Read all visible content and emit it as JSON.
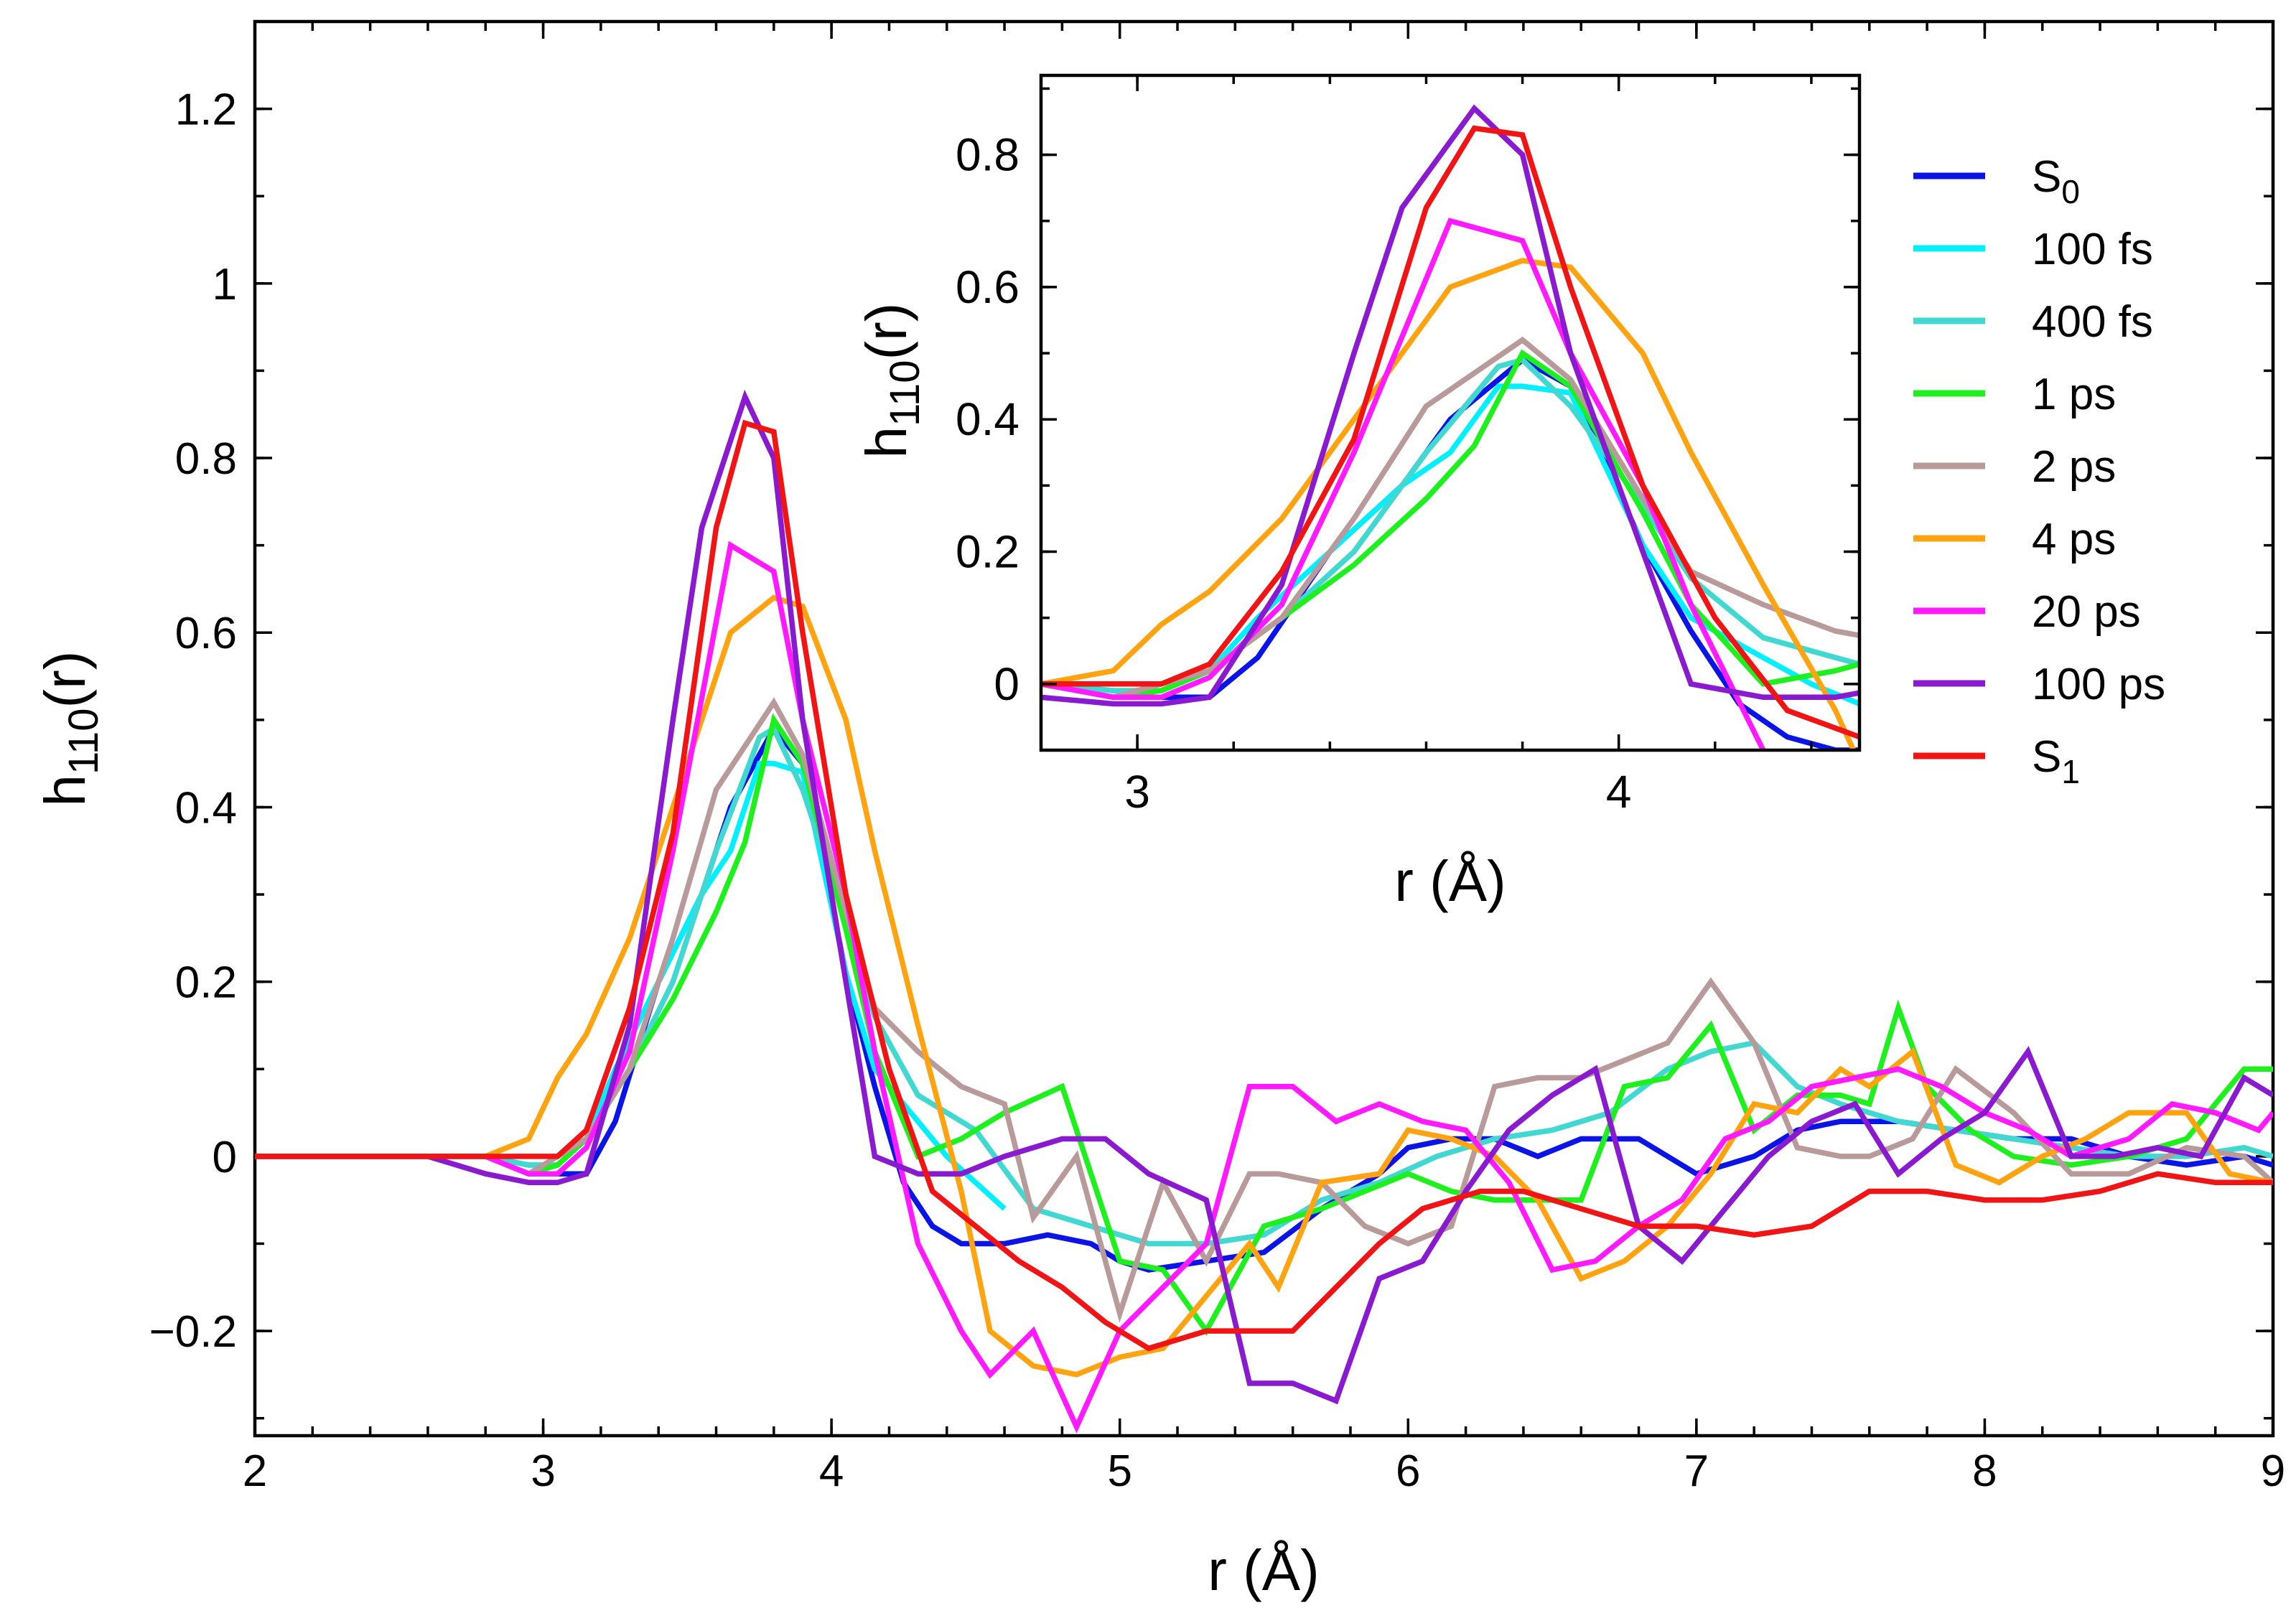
{
  "chart_data": {
    "type": "line",
    "xlabel": "r (Å)",
    "ylabel": "h110(r)",
    "ylabel_main": "h",
    "ylabel_sub": "110",
    "ylabel_tail": "(r)",
    "xlim": [
      2,
      9
    ],
    "ylim": [
      -0.32,
      1.3
    ],
    "x_ticks": [
      "2",
      "3",
      "4",
      "5",
      "6",
      "7",
      "8",
      "9"
    ],
    "y_ticks": [
      "−0.2",
      "0",
      "0.2",
      "0.4",
      "0.6",
      "0.8",
      "1",
      "1.2"
    ],
    "inset": {
      "xlabel": "r (Å)",
      "ylabel": "h110(r)",
      "ylabel_main": "h",
      "ylabel_sub": "110",
      "ylabel_tail": "(r)",
      "xlim": [
        2.8,
        4.5
      ],
      "ylim": [
        -0.1,
        0.92
      ],
      "x_ticks": [
        "3",
        "4"
      ],
      "y_ticks": [
        "0",
        "0.2",
        "0.4",
        "0.6",
        "0.8"
      ]
    },
    "legend": {
      "placement": "right"
    },
    "series": [
      {
        "name": "S0",
        "label_main": "S",
        "label_sub": "0",
        "color": "#0a14e6",
        "x": [
          2.0,
          2.2,
          2.4,
          2.6,
          2.8,
          2.95,
          3.05,
          3.15,
          3.25,
          3.4,
          3.55,
          3.65,
          3.8,
          3.9,
          4.05,
          4.15,
          4.25,
          4.35,
          4.45,
          4.6,
          4.75,
          4.9,
          5.0,
          5.1,
          5.3,
          5.5,
          5.7,
          5.9,
          6.0,
          6.15,
          6.3,
          6.45,
          6.6,
          6.8,
          7.0,
          7.2,
          7.35,
          7.5,
          7.7,
          7.9,
          8.1,
          8.3,
          8.5,
          8.7,
          8.9,
          9.0
        ],
        "y": [
          0,
          0,
          0,
          0,
          0,
          -0.02,
          -0.02,
          -0.02,
          0.04,
          0.2,
          0.3,
          0.4,
          0.49,
          0.45,
          0.21,
          0.08,
          -0.03,
          -0.08,
          -0.1,
          -0.1,
          -0.09,
          -0.1,
          -0.12,
          -0.13,
          -0.12,
          -0.11,
          -0.06,
          -0.02,
          0.01,
          0.02,
          0.02,
          0.0,
          0.02,
          0.02,
          -0.02,
          0.0,
          0.03,
          0.04,
          0.04,
          0.03,
          0.02,
          0.02,
          0.0,
          -0.01,
          0.0,
          -0.01
        ]
      },
      {
        "name": "100 fs",
        "label_main": "100 fs",
        "label_sub": "",
        "color": "#00f0ff",
        "x": [
          2.0,
          2.2,
          2.4,
          2.6,
          2.8,
          2.95,
          3.05,
          3.15,
          3.25,
          3.4,
          3.55,
          3.65,
          3.75,
          3.8,
          3.9,
          4.05,
          4.15,
          4.3,
          4.4,
          4.6
        ],
        "y": [
          0,
          0,
          0,
          0,
          0,
          -0.01,
          -0.01,
          0.02,
          0.1,
          0.2,
          0.3,
          0.35,
          0.45,
          0.45,
          0.44,
          0.21,
          0.1,
          0.04,
          0.0,
          -0.06
        ]
      },
      {
        "name": "400 fs",
        "label_main": "400 fs",
        "label_sub": "",
        "color": "#40d8d0",
        "x": [
          2.0,
          2.2,
          2.4,
          2.6,
          2.8,
          2.95,
          3.05,
          3.15,
          3.3,
          3.45,
          3.6,
          3.75,
          3.8,
          3.9,
          4.05,
          4.15,
          4.3,
          4.4,
          4.5,
          4.7,
          4.9,
          5.1,
          5.3,
          5.5,
          5.7,
          5.9,
          6.1,
          6.3,
          6.5,
          6.7,
          6.9,
          7.05,
          7.2,
          7.35,
          7.5,
          7.7,
          7.9,
          8.1,
          8.3,
          8.5,
          8.7,
          8.9,
          9.0
        ],
        "y": [
          0,
          0,
          0,
          0,
          0,
          -0.01,
          -0.01,
          0.02,
          0.1,
          0.2,
          0.35,
          0.48,
          0.49,
          0.42,
          0.27,
          0.16,
          0.07,
          0.05,
          0.03,
          -0.06,
          -0.08,
          -0.1,
          -0.1,
          -0.09,
          -0.05,
          -0.03,
          0.0,
          0.02,
          0.03,
          0.05,
          0.1,
          0.12,
          0.13,
          0.08,
          0.06,
          0.04,
          0.03,
          0.02,
          0.01,
          0.0,
          0.0,
          0.01,
          0.0
        ]
      },
      {
        "name": "1 ps",
        "label_main": "1 ps",
        "label_sub": "",
        "color": "#1ef01e",
        "x": [
          2.0,
          2.2,
          2.4,
          2.6,
          2.8,
          2.95,
          3.05,
          3.15,
          3.3,
          3.45,
          3.6,
          3.7,
          3.8,
          3.9,
          4.05,
          4.15,
          4.3,
          4.45,
          4.6,
          4.8,
          5.0,
          5.15,
          5.3,
          5.5,
          5.7,
          5.85,
          6.0,
          6.15,
          6.3,
          6.45,
          6.6,
          6.75,
          6.9,
          7.05,
          7.2,
          7.35,
          7.5,
          7.6,
          7.7,
          7.8,
          7.95,
          8.1,
          8.3,
          8.5,
          8.7,
          8.9,
          9.0
        ],
        "y": [
          0,
          0,
          0,
          0,
          0,
          -0.02,
          -0.01,
          0.02,
          0.1,
          0.18,
          0.28,
          0.36,
          0.5,
          0.45,
          0.26,
          0.12,
          0.0,
          0.02,
          0.05,
          0.08,
          -0.12,
          -0.13,
          -0.2,
          -0.08,
          -0.06,
          -0.04,
          -0.02,
          -0.04,
          -0.05,
          -0.05,
          -0.05,
          0.08,
          0.09,
          0.15,
          0.03,
          0.07,
          0.07,
          0.06,
          0.17,
          0.08,
          0.03,
          0.0,
          -0.01,
          0.0,
          0.02,
          0.1,
          0.1
        ]
      },
      {
        "name": "2 ps",
        "label_main": "2 ps",
        "label_sub": "",
        "color": "#b89a9a",
        "x": [
          2.0,
          2.2,
          2.4,
          2.6,
          2.8,
          2.95,
          3.05,
          3.15,
          3.3,
          3.45,
          3.6,
          3.8,
          3.9,
          4.05,
          4.15,
          4.3,
          4.45,
          4.6,
          4.7,
          4.85,
          5.0,
          5.15,
          5.3,
          5.45,
          5.55,
          5.7,
          5.85,
          6.0,
          6.15,
          6.3,
          6.45,
          6.6,
          6.75,
          6.9,
          7.05,
          7.2,
          7.35,
          7.5,
          7.6,
          7.75,
          7.9,
          8.1,
          8.3,
          8.5,
          8.7,
          8.9,
          9.0
        ],
        "y": [
          0,
          0,
          0,
          0,
          0,
          -0.02,
          0.0,
          0.02,
          0.1,
          0.25,
          0.42,
          0.52,
          0.46,
          0.28,
          0.17,
          0.12,
          0.08,
          0.06,
          -0.07,
          0.0,
          -0.18,
          -0.03,
          -0.12,
          -0.02,
          -0.02,
          -0.03,
          -0.08,
          -0.1,
          -0.08,
          0.08,
          0.09,
          0.09,
          0.11,
          0.13,
          0.2,
          0.13,
          0.01,
          0.0,
          0.0,
          0.02,
          0.1,
          0.05,
          -0.02,
          -0.02,
          0.01,
          0.0,
          -0.03
        ]
      },
      {
        "name": "4 ps",
        "label_main": "4 ps",
        "label_sub": "",
        "color": "#ffa310",
        "x": [
          2.0,
          2.2,
          2.4,
          2.6,
          2.8,
          2.95,
          3.05,
          3.15,
          3.3,
          3.45,
          3.65,
          3.8,
          3.9,
          4.05,
          4.15,
          4.3,
          4.45,
          4.55,
          4.7,
          4.85,
          5.0,
          5.15,
          5.3,
          5.45,
          5.55,
          5.7,
          5.9,
          6.0,
          6.15,
          6.3,
          6.45,
          6.6,
          6.75,
          6.9,
          7.05,
          7.2,
          7.35,
          7.5,
          7.6,
          7.75,
          7.9,
          8.05,
          8.2,
          8.35,
          8.5,
          8.7,
          8.85,
          9.0
        ],
        "y": [
          0,
          0,
          0,
          0,
          0,
          0.02,
          0.09,
          0.14,
          0.25,
          0.4,
          0.6,
          0.64,
          0.63,
          0.5,
          0.35,
          0.15,
          -0.04,
          -0.2,
          -0.24,
          -0.25,
          -0.23,
          -0.22,
          -0.16,
          -0.1,
          -0.15,
          -0.03,
          -0.02,
          0.03,
          0.02,
          0.0,
          -0.05,
          -0.14,
          -0.12,
          -0.08,
          -0.02,
          0.06,
          0.05,
          0.1,
          0.08,
          0.12,
          -0.01,
          -0.03,
          0.0,
          0.02,
          0.05,
          0.05,
          -0.02,
          -0.03
        ]
      },
      {
        "name": "20 ps",
        "label_main": "20 ps",
        "label_sub": "",
        "color": "#ff1aff",
        "x": [
          2.0,
          2.2,
          2.4,
          2.6,
          2.8,
          2.95,
          3.05,
          3.15,
          3.3,
          3.45,
          3.65,
          3.8,
          3.9,
          4.05,
          4.15,
          4.3,
          4.45,
          4.55,
          4.7,
          4.85,
          5.0,
          5.15,
          5.3,
          5.45,
          5.6,
          5.75,
          5.9,
          6.05,
          6.2,
          6.35,
          6.5,
          6.65,
          6.8,
          6.95,
          7.1,
          7.25,
          7.4,
          7.55,
          7.7,
          7.85,
          8.0,
          8.15,
          8.3,
          8.5,
          8.65,
          8.8,
          8.95,
          9.0
        ],
        "y": [
          0,
          0,
          0,
          0,
          0,
          -0.02,
          -0.02,
          0.01,
          0.12,
          0.35,
          0.7,
          0.67,
          0.5,
          0.3,
          0.12,
          -0.1,
          -0.2,
          -0.25,
          -0.2,
          -0.31,
          -0.2,
          -0.15,
          -0.1,
          0.08,
          0.08,
          0.04,
          0.06,
          0.04,
          0.03,
          -0.03,
          -0.13,
          -0.12,
          -0.08,
          -0.05,
          0.02,
          0.04,
          0.08,
          0.09,
          0.1,
          0.08,
          0.05,
          0.03,
          0.0,
          0.02,
          0.06,
          0.05,
          0.03,
          0.05
        ]
      },
      {
        "name": "100 ps",
        "label_main": "100 ps",
        "label_sub": "",
        "color": "#8a1ad0",
        "x": [
          2.0,
          2.2,
          2.4,
          2.6,
          2.8,
          2.95,
          3.05,
          3.15,
          3.3,
          3.45,
          3.55,
          3.7,
          3.8,
          3.9,
          4.05,
          4.15,
          4.3,
          4.45,
          4.6,
          4.8,
          4.95,
          5.1,
          5.3,
          5.45,
          5.6,
          5.75,
          5.9,
          6.05,
          6.2,
          6.35,
          6.5,
          6.65,
          6.8,
          6.95,
          7.1,
          7.25,
          7.4,
          7.55,
          7.7,
          7.85,
          8.0,
          8.15,
          8.3,
          8.45,
          8.6,
          8.75,
          8.9,
          9.0
        ],
        "y": [
          0,
          0,
          0,
          0,
          -0.02,
          -0.03,
          -0.03,
          -0.02,
          0.15,
          0.5,
          0.72,
          0.87,
          0.8,
          0.5,
          0.2,
          0.0,
          -0.02,
          -0.02,
          0.0,
          0.02,
          0.02,
          -0.02,
          -0.05,
          -0.26,
          -0.26,
          -0.28,
          -0.14,
          -0.12,
          -0.04,
          0.03,
          0.07,
          0.1,
          -0.08,
          -0.12,
          -0.06,
          0.0,
          0.04,
          0.06,
          -0.02,
          0.02,
          0.05,
          0.12,
          0.0,
          0.0,
          0.01,
          0.0,
          0.09,
          0.07
        ]
      },
      {
        "name": "S1",
        "label_main": "S",
        "label_sub": "1",
        "color": "#f01414",
        "x": [
          2.0,
          2.2,
          2.4,
          2.6,
          2.8,
          2.95,
          3.05,
          3.15,
          3.3,
          3.45,
          3.6,
          3.7,
          3.8,
          3.9,
          4.05,
          4.2,
          4.35,
          4.5,
          4.65,
          4.8,
          4.95,
          5.1,
          5.3,
          5.45,
          5.6,
          5.75,
          5.9,
          6.05,
          6.25,
          6.4,
          6.6,
          6.8,
          7.0,
          7.2,
          7.4,
          7.6,
          7.8,
          8.0,
          8.2,
          8.4,
          8.6,
          8.8,
          9.0
        ],
        "y": [
          0,
          0,
          0,
          0,
          0,
          0.0,
          0.0,
          0.03,
          0.17,
          0.37,
          0.72,
          0.84,
          0.83,
          0.6,
          0.3,
          0.1,
          -0.04,
          -0.08,
          -0.12,
          -0.15,
          -0.19,
          -0.22,
          -0.2,
          -0.2,
          -0.2,
          -0.15,
          -0.1,
          -0.06,
          -0.04,
          -0.04,
          -0.06,
          -0.08,
          -0.08,
          -0.09,
          -0.08,
          -0.04,
          -0.04,
          -0.05,
          -0.05,
          -0.04,
          -0.02,
          -0.03,
          -0.03
        ]
      }
    ]
  }
}
